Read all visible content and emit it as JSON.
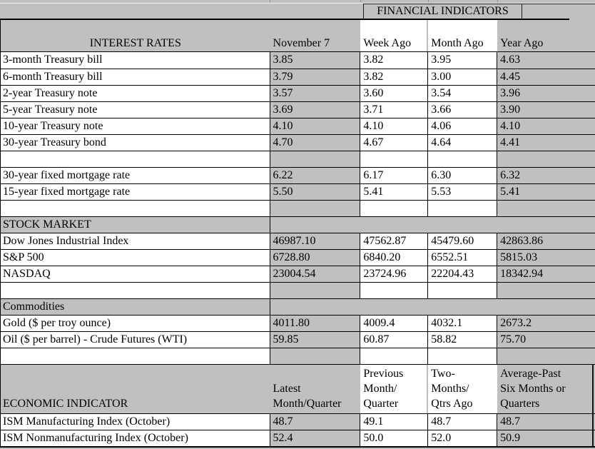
{
  "title": "FINANCIAL INDICATORS",
  "colors": {
    "cell_gray": "#c0c0c0",
    "border": "#000000",
    "background": "#ffffff"
  },
  "interest": {
    "section_label": "INTEREST RATES",
    "columns": [
      "November 7",
      "Week Ago",
      "Month Ago",
      "Year Ago"
    ],
    "rows": [
      {
        "label": "3-month Treasury bill",
        "values": [
          "3.85",
          "3.82",
          "3.95",
          "4.63"
        ]
      },
      {
        "label": "6-month Treasury bill",
        "values": [
          "3.79",
          "3.82",
          "3.00",
          "4.45"
        ]
      },
      {
        "label": "2-year Treasury note",
        "values": [
          "3.57",
          "3.60",
          "3.54",
          "3.96"
        ]
      },
      {
        "label": "5-year Treasury note",
        "values": [
          "3.69",
          "3.71",
          "3.66",
          "3.90"
        ]
      },
      {
        "label": "10-year Treasury note",
        "values": [
          "4.10",
          "4.10",
          "4.06",
          "4.10"
        ]
      },
      {
        "label": "30-year Treasury bond",
        "values": [
          "4.70",
          "4.67",
          "4.64",
          "4.41"
        ]
      }
    ],
    "mortgage_rows": [
      {
        "label": "30-year fixed mortgage rate",
        "values": [
          "6.22",
          "6.17",
          "6.30",
          "6.32"
        ]
      },
      {
        "label": "15-year fixed mortgage rate",
        "values": [
          "5.50",
          "5.41",
          "5.53",
          "5.41"
        ]
      }
    ]
  },
  "stock_market": {
    "section_label": "STOCK MARKET",
    "rows": [
      {
        "label": "Dow Jones Industrial Index",
        "values": [
          "46987.10",
          "47562.87",
          "45479.60",
          "42863.86"
        ]
      },
      {
        "label": "S&P 500",
        "values": [
          "6728.80",
          "6840.20",
          "6552.51",
          "5815.03"
        ]
      },
      {
        "label": "NASDAQ",
        "values": [
          "23004.54",
          "23724.96",
          "22204.43",
          "18342.94"
        ]
      }
    ]
  },
  "commodities": {
    "section_label": "Commodities",
    "rows": [
      {
        "label": "Gold ($ per troy ounce)",
        "values": [
          "4011.80",
          "4009.4",
          "4032.1",
          "2673.2"
        ]
      },
      {
        "label": "Oil ($ per barrel) - Crude Futures (WTI)",
        "values": [
          "59.85",
          "60.87",
          "58.82",
          "75.70"
        ]
      }
    ]
  },
  "economic": {
    "section_label": "ECONOMIC INDICATOR",
    "columns": [
      "Latest\nMonth/Quarter",
      "Previous\nMonth/\nQuarter",
      "Two-\nMonths/\nQtrs Ago",
      "Average-Past\nSix Months or\nQuarters"
    ],
    "rows": [
      {
        "label": "ISM Manufacturing Index (October)",
        "values": [
          "48.7",
          "49.1",
          "48.7",
          "48.7"
        ]
      },
      {
        "label": "ISM Nonmanufacturing Index (October)",
        "values": [
          "52.4",
          "50.0",
          "52.0",
          "50.9"
        ]
      }
    ]
  }
}
